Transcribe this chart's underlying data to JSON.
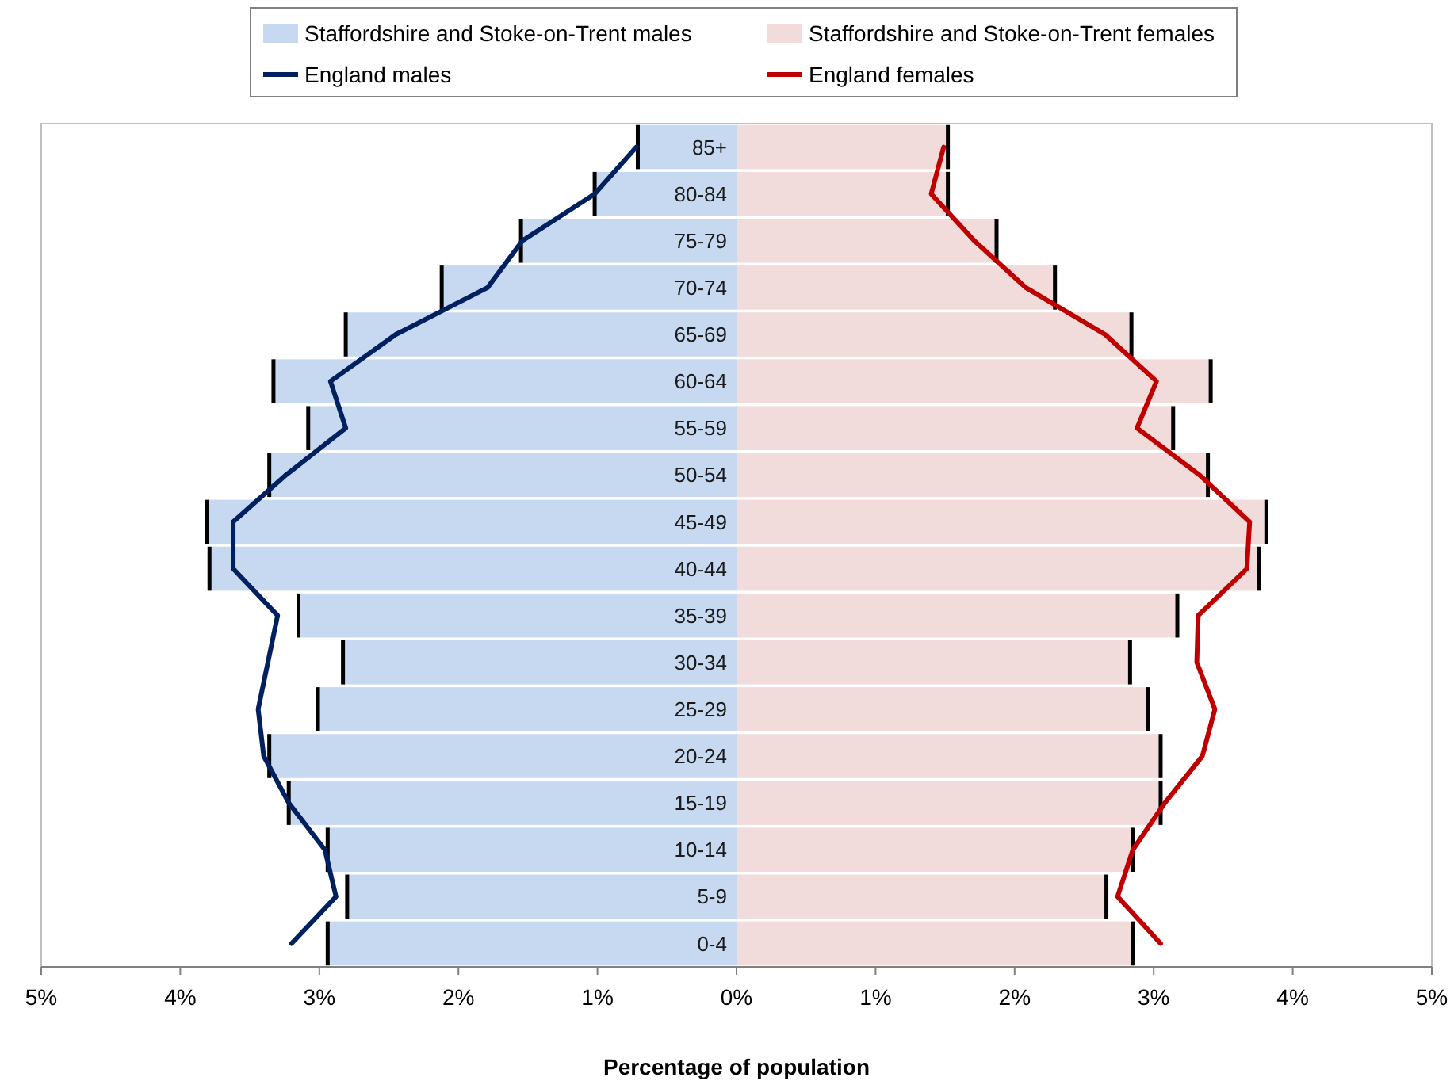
{
  "chart_data": {
    "type": "bar",
    "orientation": "horizontal",
    "stacked": true,
    "xlabel": "Percentage of population",
    "categories": [
      "85+",
      "80-84",
      "75-79",
      "70-74",
      "65-69",
      "60-64",
      "55-59",
      "50-54",
      "45-49",
      "40-44",
      "35-39",
      "30-34",
      "25-29",
      "20-24",
      "15-19",
      "10-14",
      "5-9",
      "0-4"
    ],
    "series": [
      {
        "name": "Staffordshire and Stoke-on-Trent males",
        "color": "#c6d9f1",
        "values": [
          -0.71,
          -1.02,
          -1.55,
          -2.12,
          -2.81,
          -3.33,
          -3.08,
          -3.36,
          -3.81,
          -3.79,
          -3.15,
          -2.83,
          -3.01,
          -3.36,
          -3.22,
          -2.94,
          -2.8,
          -2.94
        ]
      },
      {
        "name": "Staffordshire and Stoke-on-Trent females",
        "color": "#f2dcdb",
        "values": [
          1.52,
          1.52,
          1.87,
          2.29,
          2.84,
          3.41,
          3.14,
          3.39,
          3.81,
          3.76,
          3.17,
          2.83,
          2.96,
          3.05,
          3.05,
          2.85,
          2.66,
          2.85
        ]
      },
      {
        "name": "England males",
        "type": "line",
        "color": "#002060",
        "values": [
          -0.72,
          -1.02,
          -1.54,
          -1.79,
          -2.45,
          -2.92,
          -2.81,
          -3.24,
          -3.62,
          -3.62,
          -3.3,
          -3.37,
          -3.44,
          -3.4,
          -3.22,
          -2.96,
          -2.88,
          -3.2
        ]
      },
      {
        "name": "England females",
        "type": "line",
        "color": "#c00000",
        "values": [
          1.49,
          1.4,
          1.71,
          2.08,
          2.65,
          3.02,
          2.88,
          3.33,
          3.69,
          3.67,
          3.32,
          3.31,
          3.44,
          3.35,
          3.08,
          2.85,
          2.74,
          3.05
        ]
      }
    ],
    "xlim": [
      -5,
      5
    ],
    "xticks": [
      {
        "value": -5,
        "label": "5%"
      },
      {
        "value": -4,
        "label": "4%"
      },
      {
        "value": -3,
        "label": "3%"
      },
      {
        "value": -2,
        "label": "2%"
      },
      {
        "value": -1,
        "label": "1%"
      },
      {
        "value": 0,
        "label": "0%"
      },
      {
        "value": 1,
        "label": "1%"
      },
      {
        "value": 2,
        "label": "2%"
      },
      {
        "value": 3,
        "label": "3%"
      },
      {
        "value": 4,
        "label": "4%"
      },
      {
        "value": 5,
        "label": "5%"
      }
    ],
    "legend": "top",
    "marker": "none",
    "line_style": "solid"
  }
}
